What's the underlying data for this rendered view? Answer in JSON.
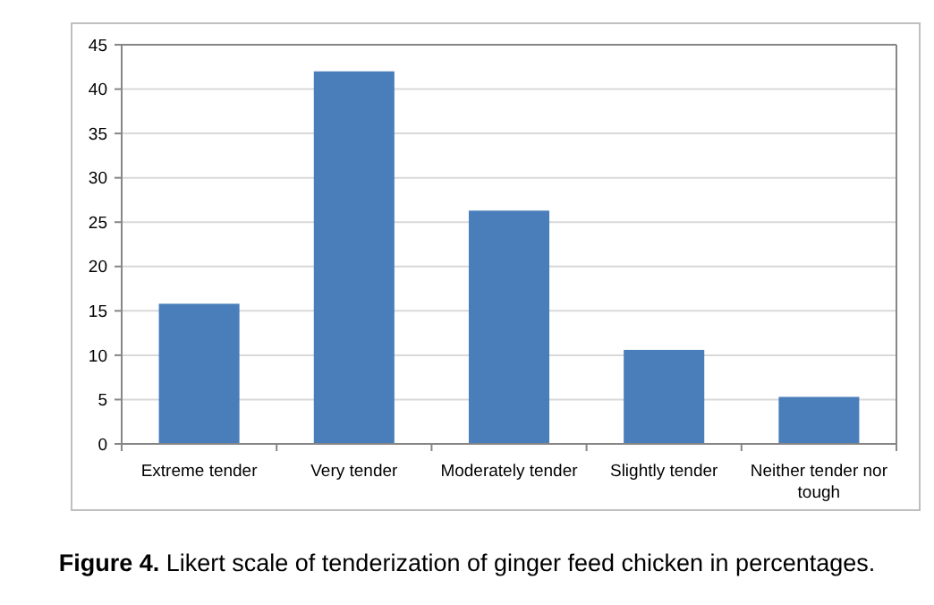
{
  "chart_data": {
    "type": "bar",
    "categories": [
      "Extreme tender",
      "Very tender",
      "Moderately tender",
      "Slightly tender",
      "Neither tender nor tough"
    ],
    "values": [
      15.8,
      42,
      26.3,
      10.6,
      5.3
    ],
    "color": "#4a7ebb",
    "ylim": [
      0,
      45
    ],
    "yticks": [
      0,
      5,
      10,
      15,
      20,
      25,
      30,
      35,
      40,
      45
    ],
    "grid": "y",
    "annotations": [
      "Figure 4. Likert scale of tenderization of ginger feed chicken in percentages."
    ]
  }
}
